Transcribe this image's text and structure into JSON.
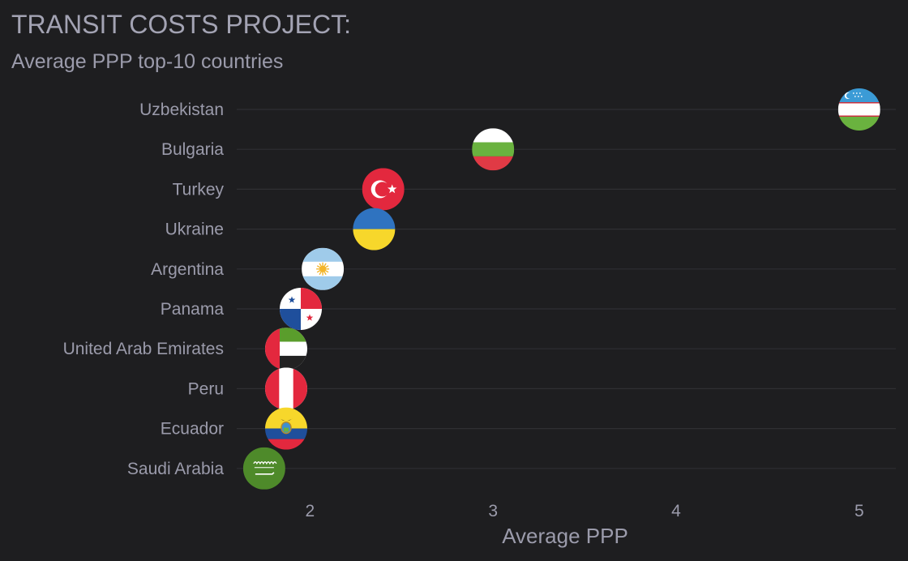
{
  "colors": {
    "background": "#1e1e20",
    "text": "#9b9bab",
    "grid": "#2f2f33"
  },
  "chart_data": {
    "type": "scatter",
    "title": "TRANSIT COSTS PROJECT:",
    "subtitle": "Average PPP top-10 countries",
    "xlabel": "Average PPP",
    "ylabel": "",
    "xlim": [
      1.6,
      5.2
    ],
    "xticks": [
      2,
      3,
      4,
      5
    ],
    "grid": "horizontal",
    "legend": "none",
    "categories": [
      "Uzbekistan",
      "Bulgaria",
      "Turkey",
      "Ukraine",
      "Argentina",
      "Panama",
      "United Arab Emirates",
      "Peru",
      "Ecuador",
      "Saudi Arabia"
    ],
    "values": [
      5.0,
      3.0,
      2.4,
      2.35,
      2.07,
      1.95,
      1.87,
      1.87,
      1.87,
      1.75
    ],
    "markers": [
      "uzbekistan-flag",
      "bulgaria-flag",
      "turkey-flag",
      "ukraine-flag",
      "argentina-flag",
      "panama-flag",
      "uae-flag",
      "peru-flag",
      "ecuador-flag",
      "saudi-arabia-flag"
    ]
  }
}
